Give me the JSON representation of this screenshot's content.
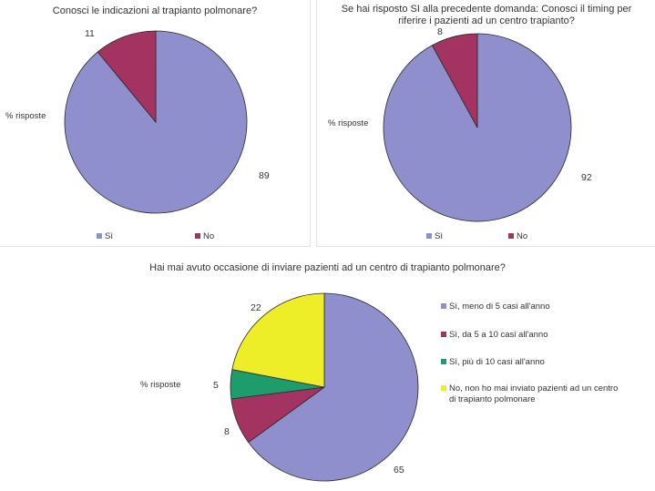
{
  "chart_data": [
    {
      "type": "pie",
      "title": "Conosci le indicazioni al trapianto polmonare?",
      "ylabel": "% risposte",
      "categories": [
        "Sì",
        "No"
      ],
      "values": [
        89,
        11
      ],
      "colors": [
        "#8f8fce",
        "#a33461"
      ],
      "legend_position": "bottom"
    },
    {
      "type": "pie",
      "title": "Se hai risposto SI alla precedente domanda: Conosci il timing per riferire i pazienti ad un centro trapianto?",
      "ylabel": "% risposte",
      "categories": [
        "Sì",
        "No"
      ],
      "values": [
        92,
        8
      ],
      "colors": [
        "#8f8fce",
        "#a33461"
      ],
      "legend_position": "bottom"
    },
    {
      "type": "pie",
      "title": "Hai mai avuto occasione di inviare pazienti ad un centro di trapianto polmonare?",
      "ylabel": "% risposte",
      "categories": [
        "Sì, meno di 5 casi all'anno",
        "Sì, da 5 a 10 casi all'anno",
        "Sì, più di 10 casi all'anno",
        "No, non ho mai inviato pazienti ad un centro di trapianto polmonare"
      ],
      "values": [
        65,
        8,
        5,
        22
      ],
      "colors": [
        "#8f8fce",
        "#a33461",
        "#1f9c6c",
        "#eeee28"
      ],
      "legend_position": "right"
    }
  ]
}
